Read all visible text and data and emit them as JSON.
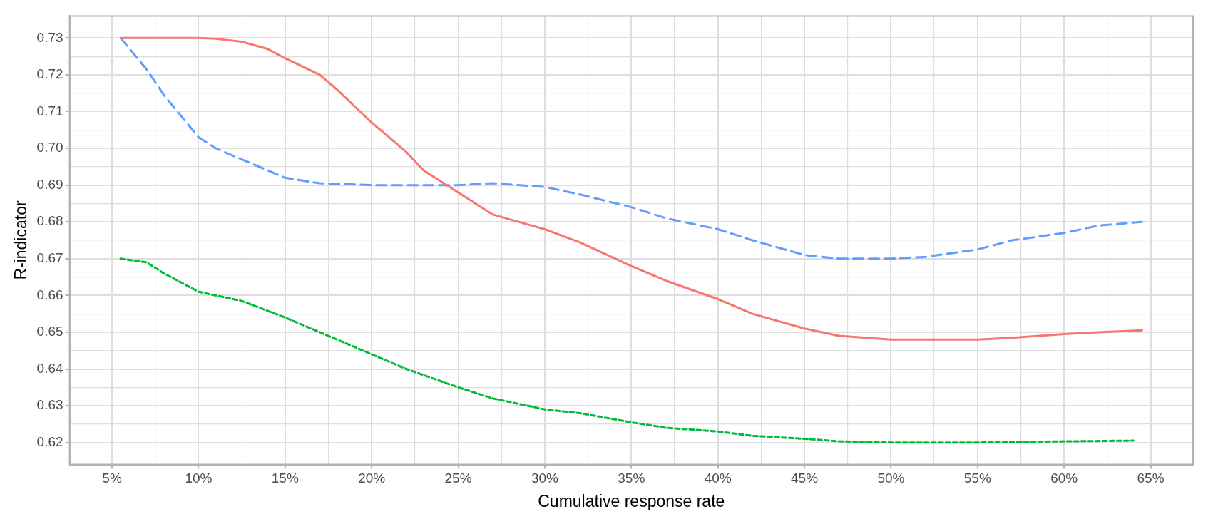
{
  "chart_data": {
    "type": "line",
    "xlabel": "Cumulative response rate",
    "ylabel": "R-indicator",
    "xlim": [
      2.55,
      67.45
    ],
    "xticks": [
      {
        "value": 5,
        "label": "5%"
      },
      {
        "value": 7.5,
        "label": null
      },
      {
        "value": 10,
        "label": "10%"
      },
      {
        "value": 12.5,
        "label": null
      },
      {
        "value": 15,
        "label": "15%"
      },
      {
        "value": 17.5,
        "label": null
      },
      {
        "value": 20,
        "label": "20%"
      },
      {
        "value": 22.5,
        "label": null
      },
      {
        "value": 25,
        "label": "25%"
      },
      {
        "value": 27.5,
        "label": null
      },
      {
        "value": 30,
        "label": "30%"
      },
      {
        "value": 32.5,
        "label": null
      },
      {
        "value": 35,
        "label": "35%"
      },
      {
        "value": 37.5,
        "label": null
      },
      {
        "value": 40,
        "label": "40%"
      },
      {
        "value": 42.5,
        "label": null
      },
      {
        "value": 45,
        "label": "45%"
      },
      {
        "value": 47.5,
        "label": null
      },
      {
        "value": 50,
        "label": "50%"
      },
      {
        "value": 52.5,
        "label": null
      },
      {
        "value": 55,
        "label": "55%"
      },
      {
        "value": 57.5,
        "label": null
      },
      {
        "value": 60,
        "label": "60%"
      },
      {
        "value": 62.5,
        "label": null
      },
      {
        "value": 65,
        "label": "65%"
      }
    ],
    "ylim": [
      0.614,
      0.736
    ],
    "yticks": [
      {
        "value": 0.62,
        "label": "0.62"
      },
      {
        "value": 0.625,
        "label": null
      },
      {
        "value": 0.63,
        "label": "0.63"
      },
      {
        "value": 0.635,
        "label": null
      },
      {
        "value": 0.64,
        "label": "0.64"
      },
      {
        "value": 0.645,
        "label": null
      },
      {
        "value": 0.65,
        "label": "0.65"
      },
      {
        "value": 0.655,
        "label": null
      },
      {
        "value": 0.66,
        "label": "0.66"
      },
      {
        "value": 0.665,
        "label": null
      },
      {
        "value": 0.67,
        "label": "0.67"
      },
      {
        "value": 0.675,
        "label": null
      },
      {
        "value": 0.68,
        "label": "0.68"
      },
      {
        "value": 0.685,
        "label": null
      },
      {
        "value": 0.69,
        "label": "0.69"
      },
      {
        "value": 0.695,
        "label": null
      },
      {
        "value": 0.7,
        "label": "0.70"
      },
      {
        "value": 0.705,
        "label": null
      },
      {
        "value": 0.71,
        "label": "0.71"
      },
      {
        "value": 0.715,
        "label": null
      },
      {
        "value": 0.72,
        "label": "0.72"
      },
      {
        "value": 0.725,
        "label": null
      },
      {
        "value": 0.73,
        "label": "0.73"
      }
    ],
    "grid": true,
    "legend": false,
    "marker": "none",
    "series": [
      {
        "color": "#f8766d",
        "line_style": "solid",
        "x": [
          5.5,
          10,
          11,
          12.5,
          14,
          15,
          17,
          18,
          20,
          22,
          23,
          25,
          26,
          27,
          30,
          32,
          35,
          37,
          40,
          42,
          45,
          47,
          50,
          55,
          57,
          60,
          62,
          64.5
        ],
        "values": [
          0.73,
          0.73,
          0.7298,
          0.729,
          0.727,
          0.7245,
          0.72,
          0.716,
          0.707,
          0.699,
          0.694,
          0.688,
          0.685,
          0.682,
          0.678,
          0.6745,
          0.668,
          0.664,
          0.659,
          0.655,
          0.651,
          0.649,
          0.648,
          0.648,
          0.6485,
          0.6495,
          0.65,
          0.6505
        ]
      },
      {
        "color": "#619cff",
        "line_style": "dashed",
        "x": [
          5.5,
          7,
          8,
          10,
          11,
          12.5,
          15,
          17,
          20,
          23,
          25,
          27,
          30,
          32,
          35,
          37,
          40,
          42,
          45,
          47,
          50,
          52,
          55,
          57,
          60,
          62,
          64.5
        ],
        "values": [
          0.73,
          0.7215,
          0.7145,
          0.703,
          0.7,
          0.697,
          0.692,
          0.6905,
          0.69,
          0.69,
          0.69,
          0.6905,
          0.6895,
          0.6875,
          0.684,
          0.681,
          0.678,
          0.675,
          0.671,
          0.67,
          0.67,
          0.6705,
          0.6725,
          0.675,
          0.677,
          0.679,
          0.68
        ]
      },
      {
        "color": "#00ba38",
        "line_style": "dotted",
        "x": [
          5.5,
          7,
          8,
          10,
          12.5,
          15,
          17,
          20,
          22,
          25,
          27,
          30,
          32,
          35,
          37,
          40,
          42,
          45,
          47,
          50,
          55,
          60,
          64
        ],
        "values": [
          0.67,
          0.669,
          0.666,
          0.661,
          0.6585,
          0.654,
          0.65,
          0.644,
          0.64,
          0.635,
          0.632,
          0.629,
          0.628,
          0.6255,
          0.624,
          0.623,
          0.6218,
          0.621,
          0.6203,
          0.62,
          0.62,
          0.6203,
          0.6205
        ]
      }
    ]
  }
}
